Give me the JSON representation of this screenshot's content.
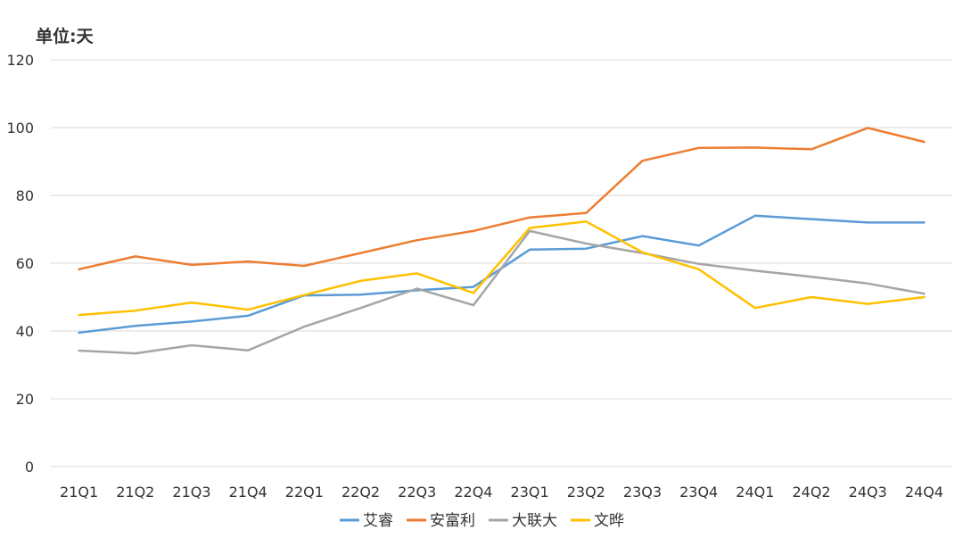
{
  "chart_data": {
    "type": "line",
    "unit_label": "单位:天",
    "categories": [
      "21Q1",
      "21Q2",
      "21Q3",
      "21Q4",
      "22Q1",
      "22Q2",
      "22Q3",
      "22Q4",
      "23Q1",
      "23Q2",
      "23Q3",
      "23Q4",
      "24Q1",
      "24Q2",
      "24Q3",
      "24Q4"
    ],
    "ylim": [
      0,
      120
    ],
    "yticks": [
      0,
      20,
      40,
      60,
      80,
      100,
      120
    ],
    "grid": true,
    "legend_position": "bottom",
    "series": [
      {
        "name": "艾睿",
        "color": "#5B9BD5",
        "values": [
          39.5,
          41.5,
          42.8,
          44.5,
          50.5,
          50.7,
          52,
          53,
          64,
          64.3,
          68,
          65.2,
          74,
          73,
          72,
          72
        ]
      },
      {
        "name": "安富利",
        "color": "#ED7D31",
        "values": [
          58.2,
          62,
          59.5,
          60.5,
          59.2,
          63,
          66.8,
          69.5,
          73.5,
          74.8,
          90.2,
          94,
          94.1,
          93.6,
          99.9,
          95.8
        ]
      },
      {
        "name": "大联大",
        "color": "#A5A5A5",
        "values": [
          34.2,
          33.4,
          35.8,
          34.3,
          41.3,
          46.8,
          52.5,
          47.6,
          69.5,
          65.8,
          63,
          59.8,
          57.8,
          56,
          54,
          51
        ]
      },
      {
        "name": "文晔",
        "color": "#FFC000",
        "values": [
          44.7,
          46,
          48.4,
          46.3,
          50.6,
          54.8,
          57,
          51.2,
          70.4,
          72.3,
          63.2,
          58.2,
          46.8,
          50,
          48,
          50
        ]
      }
    ]
  }
}
